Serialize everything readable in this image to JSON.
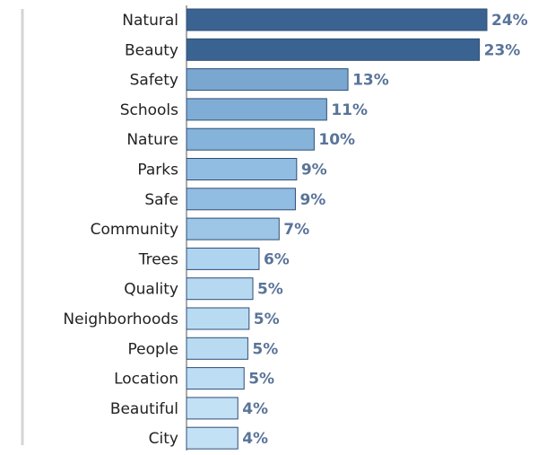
{
  "chart_data": {
    "type": "bar",
    "orientation": "horizontal",
    "categories": [
      "Natural",
      "Beauty",
      "Safety",
      "Schools",
      "Nature",
      "Parks",
      "Safe",
      "Community",
      "Trees",
      "Quality",
      "Neighborhoods",
      "People",
      "Location",
      "Beautiful",
      "City"
    ],
    "values": [
      24.0,
      23.4,
      12.9,
      11.2,
      10.2,
      8.8,
      8.7,
      7.4,
      5.8,
      5.3,
      5.0,
      4.9,
      4.6,
      4.1,
      4.1
    ],
    "value_labels": [
      "24%",
      "23%",
      "13%",
      "11%",
      "10%",
      "9%",
      "9%",
      "7%",
      "6%",
      "5%",
      "5%",
      "5%",
      "5%",
      "4%",
      "4%"
    ],
    "colors": [
      "#3b6391",
      "#3b6391",
      "#79a7d0",
      "#7fadd6",
      "#85b3da",
      "#92bde2",
      "#92bde2",
      "#9cc5e6",
      "#aed4ef",
      "#b6d9f1",
      "#b9dbf2",
      "#b9dbf2",
      "#bcddf3",
      "#c2e1f5",
      "#c2e1f5"
    ]
  }
}
